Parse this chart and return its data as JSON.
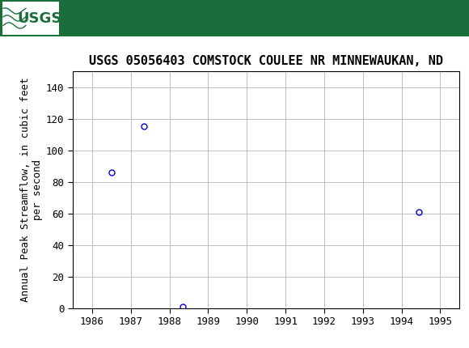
{
  "title": "USGS 05056403 COMSTOCK COULEE NR MINNEWAUKAN, ND",
  "ylabel_line1": "Annual Peak Streamflow, in cubic feet",
  "ylabel_line2": "per second",
  "years": [
    1986.5,
    1987.35,
    1988.35,
    1994.45
  ],
  "values": [
    86,
    115,
    1,
    61
  ],
  "marker_color": "#0000cc",
  "marker_facecolor": "none",
  "marker_size": 5,
  "marker_linewidth": 1.0,
  "xlim": [
    1985.5,
    1995.5
  ],
  "ylim": [
    0,
    150
  ],
  "xticks": [
    1986,
    1987,
    1988,
    1989,
    1990,
    1991,
    1992,
    1993,
    1994,
    1995
  ],
  "yticks": [
    0,
    20,
    40,
    60,
    80,
    100,
    120,
    140
  ],
  "grid_color": "#c0c0c0",
  "bg_color": "#ffffff",
  "header_bg_color": "#1a6e3b",
  "header_logo_bg": "#ffffff",
  "header_text_color": "#ffffff",
  "header_usgs_text": "USGS",
  "tick_fontsize": 9,
  "ylabel_fontsize": 9,
  "title_fontsize": 11
}
